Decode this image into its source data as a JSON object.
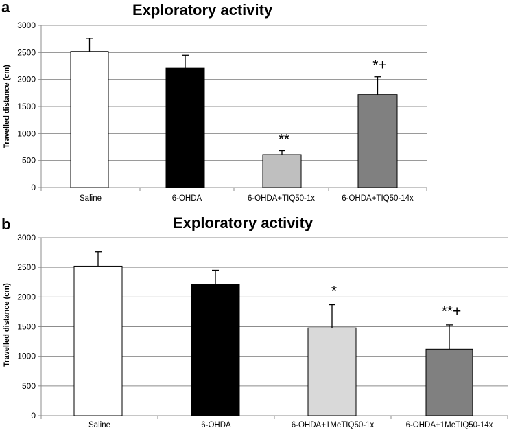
{
  "chart_data": [
    {
      "panel_label": "a",
      "type": "bar",
      "title": "Exploratory activity",
      "xlabel": "",
      "ylabel": "Travelled distance  (cm)",
      "ylim": [
        0,
        3000
      ],
      "yticks": [
        "0",
        "500",
        "1000",
        "1500",
        "2000",
        "2500",
        "3000"
      ],
      "grid": true,
      "categories": [
        "Saline",
        "6-OHDA",
        "6-OHDA+TIQ50-1x",
        "6-OHDA+TIQ50-14x"
      ],
      "values": [
        2520,
        2210,
        610,
        1720
      ],
      "errors": [
        240,
        240,
        70,
        330
      ],
      "annotations": [
        "",
        "",
        "**",
        "*+"
      ],
      "colors": [
        "#ffffff",
        "#000000",
        "#bfbfbf",
        "#808080"
      ]
    },
    {
      "panel_label": "b",
      "type": "bar",
      "title": "Exploratory activity",
      "xlabel": "",
      "ylabel": "Travelled distance  (cm)",
      "ylim": [
        0,
        3000
      ],
      "yticks": [
        "0",
        "500",
        "1000",
        "1500",
        "2000",
        "2500",
        "3000"
      ],
      "grid": true,
      "categories": [
        "Saline",
        "6-OHDA",
        "6-OHDA+1MeTIQ50-1x",
        "6-OHDA+1MeTIQ50-14x"
      ],
      "values": [
        2520,
        2210,
        1480,
        1120
      ],
      "errors": [
        240,
        240,
        390,
        410
      ],
      "annotations": [
        "",
        "",
        "*",
        "**+"
      ],
      "colors": [
        "#ffffff",
        "#000000",
        "#d9d9d9",
        "#808080"
      ]
    }
  ]
}
